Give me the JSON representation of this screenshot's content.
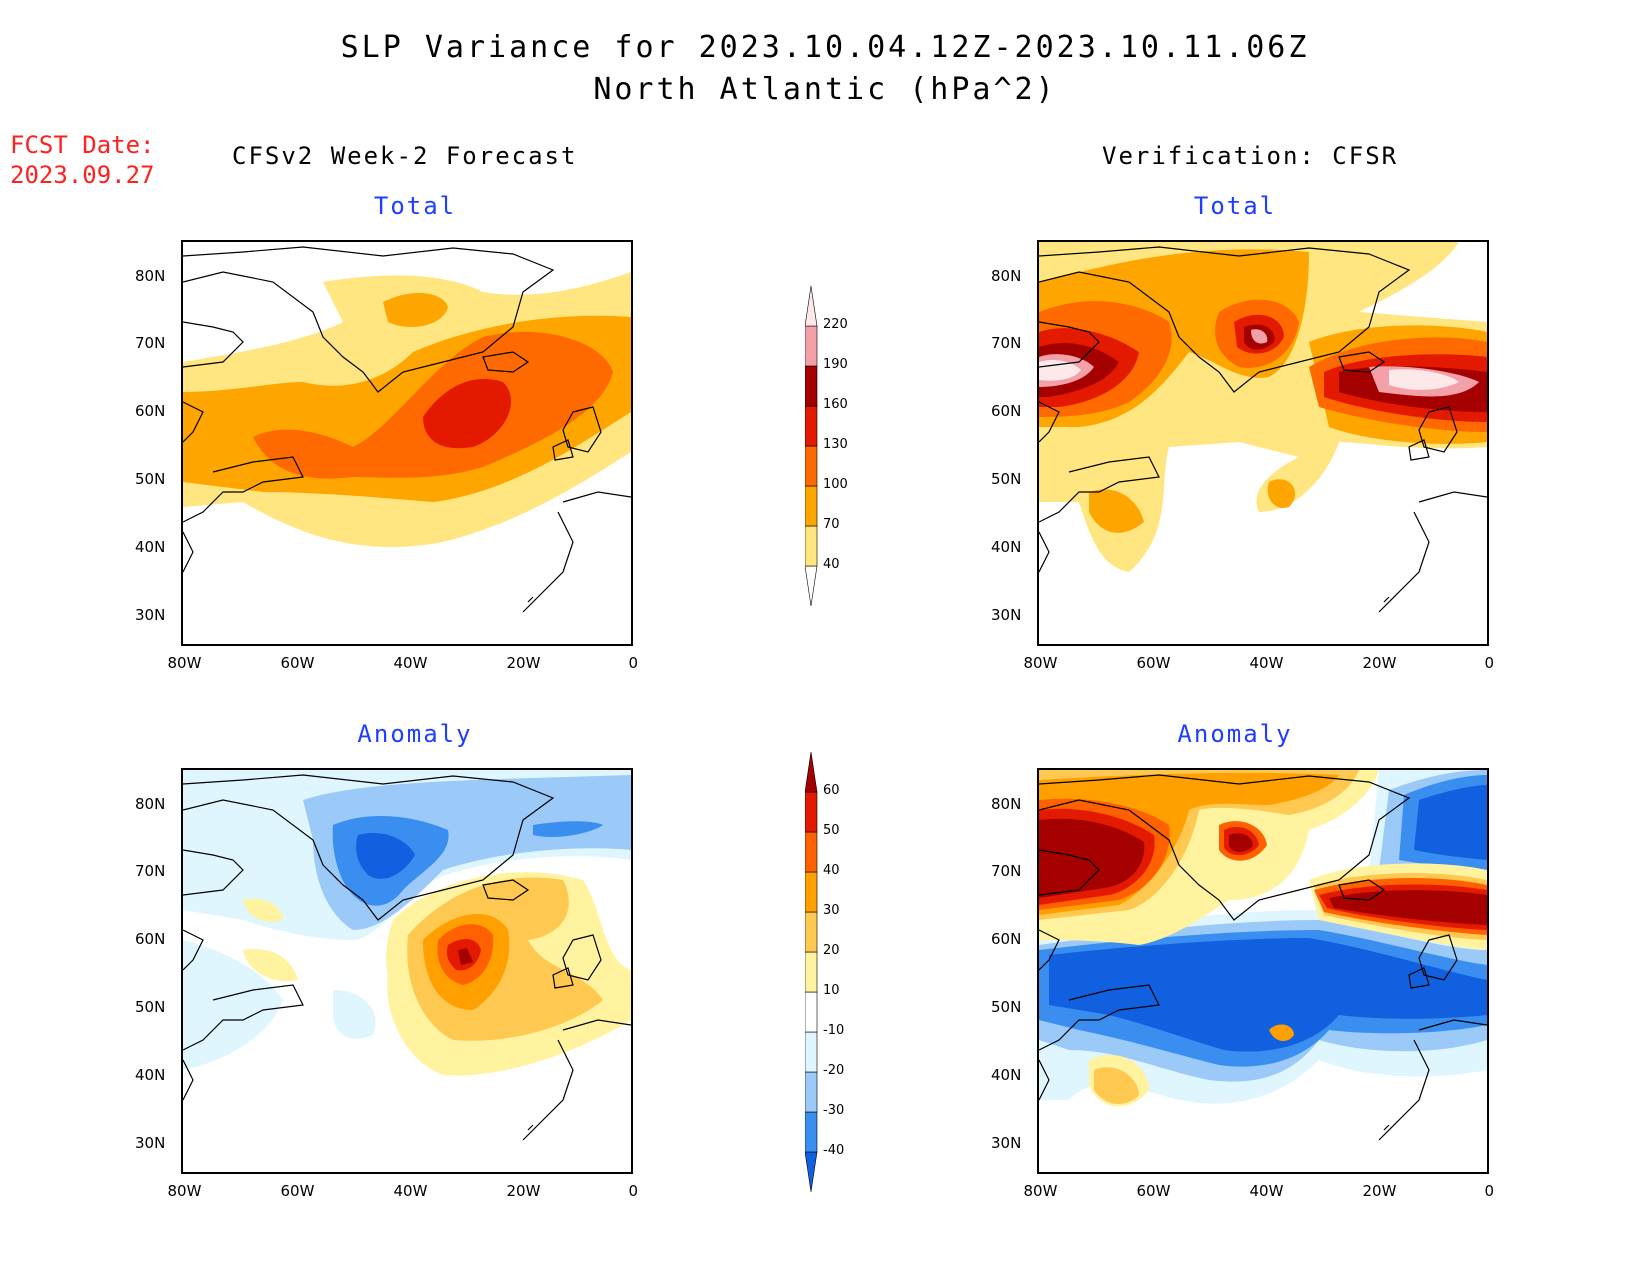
{
  "title_line1": "SLP Variance for 2023.10.04.12Z-2023.10.11.06Z",
  "title_line2": "North Atlantic (hPa^2)",
  "fcst_label": "FCST Date:",
  "fcst_date": "2023.09.27",
  "left_column_title": "CFSv2 Week-2 Forecast",
  "right_column_title": "Verification: CFSR",
  "panels": {
    "fcst_total": {
      "subtitle": "Total"
    },
    "verif_total": {
      "subtitle": "Total"
    },
    "fcst_anom": {
      "subtitle": "Anomaly"
    },
    "verif_anom": {
      "subtitle": "Anomaly"
    }
  },
  "lat_ticks": [
    "80N",
    "70N",
    "60N",
    "50N",
    "40N",
    "30N"
  ],
  "lon_ticks": [
    "80W",
    "60W",
    "40W",
    "20W",
    "0"
  ],
  "colorbar_total": {
    "levels": [
      "40",
      "70",
      "100",
      "130",
      "160",
      "190",
      "220"
    ],
    "colors": [
      "#ffffff",
      "#ffe680",
      "#ffa500",
      "#ff6a00",
      "#e41a00",
      "#a50000",
      "#f4a0a8",
      "#fde8ea"
    ]
  },
  "colorbar_anom": {
    "levels": [
      "-40",
      "-30",
      "-20",
      "-10",
      "10",
      "20",
      "30",
      "40",
      "50",
      "60"
    ],
    "colors": [
      "#1060e0",
      "#3a8ef0",
      "#9ccaf8",
      "#e0f6ff",
      "#ffffff",
      "#fff3a0",
      "#ffc850",
      "#ffa000",
      "#ff6000",
      "#e41a00",
      "#a50000"
    ]
  },
  "map_colors": {
    "land_outline": "#000000",
    "c40": "#ffe680",
    "c70": "#ffa500",
    "c100": "#ff6a00",
    "c130": "#e41a00",
    "c160": "#a50000",
    "c190": "#f4a0a8",
    "c220": "#fde8ea",
    "n10": "#e0f6ff",
    "n20": "#9ccaf8",
    "n30": "#3a8ef0",
    "n40": "#1060e0",
    "p10": "#fff3a0",
    "p20": "#ffc850",
    "p30": "#ffa000",
    "p40": "#ff6000",
    "p50": "#e41a00",
    "p60": "#a50000"
  }
}
